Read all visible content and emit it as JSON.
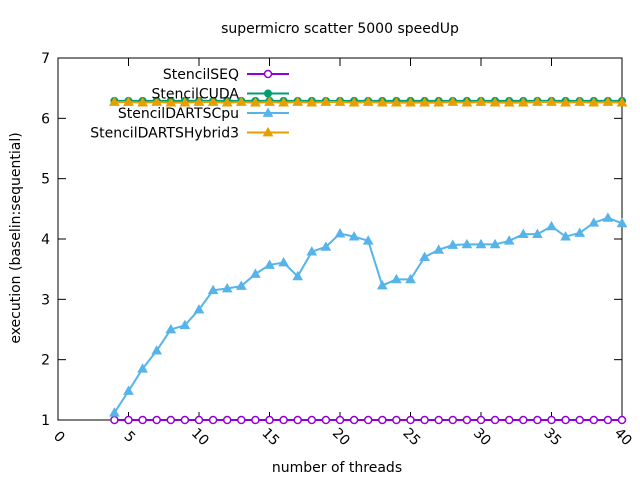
{
  "chart_data": {
    "type": "line",
    "title": "supermicro scatter 5000 speedUp",
    "xlabel": "number of threads",
    "ylabel": "execution (baselin:sequential)",
    "xlim": [
      0,
      40
    ],
    "ylim": [
      1,
      7
    ],
    "xticks": [
      0,
      5,
      10,
      15,
      20,
      25,
      30,
      35,
      40
    ],
    "yticks": [
      1,
      2,
      3,
      4,
      5,
      6,
      7
    ],
    "grid": false,
    "legend_position": "top-left",
    "x": [
      4,
      5,
      6,
      7,
      8,
      9,
      10,
      11,
      12,
      13,
      14,
      15,
      16,
      17,
      18,
      19,
      20,
      21,
      22,
      23,
      24,
      25,
      26,
      27,
      28,
      29,
      30,
      31,
      32,
      33,
      34,
      35,
      36,
      37,
      38,
      39,
      40
    ],
    "series": [
      {
        "name": "StencilSEQ",
        "color": "#9400d3",
        "marker": "open-circle",
        "values": [
          1,
          1,
          1,
          1,
          1,
          1,
          1,
          1,
          1,
          1,
          1,
          1,
          1,
          1,
          1,
          1,
          1,
          1,
          1,
          1,
          1,
          1,
          1,
          1,
          1,
          1,
          1,
          1,
          1,
          1,
          1,
          1,
          1,
          1,
          1,
          1,
          1
        ]
      },
      {
        "name": "StencilCUDA",
        "color": "#009e73",
        "marker": "filled-circle",
        "values": [
          6.29,
          6.29,
          6.29,
          6.29,
          6.29,
          6.29,
          6.29,
          6.29,
          6.29,
          6.29,
          6.29,
          6.29,
          6.29,
          6.29,
          6.29,
          6.29,
          6.29,
          6.29,
          6.29,
          6.29,
          6.29,
          6.29,
          6.29,
          6.29,
          6.29,
          6.29,
          6.29,
          6.29,
          6.29,
          6.29,
          6.29,
          6.29,
          6.29,
          6.29,
          6.29,
          6.29,
          6.29
        ]
      },
      {
        "name": "StencilDARTSCpu",
        "color": "#56b4e9",
        "marker": "filled-triangle",
        "values": [
          1.12,
          1.48,
          1.85,
          2.15,
          2.5,
          2.57,
          2.83,
          3.15,
          3.18,
          3.22,
          3.42,
          3.57,
          3.61,
          3.38,
          3.79,
          3.87,
          4.09,
          4.04,
          3.97,
          3.23,
          3.33,
          3.33,
          3.7,
          3.82,
          3.9,
          3.91,
          3.91,
          3.91,
          3.97,
          4.08,
          4.08,
          4.21,
          4.04,
          4.1,
          4.27,
          4.35,
          4.26
        ]
      },
      {
        "name": "StencilDARTSHybrid3",
        "color": "#e69f00",
        "marker": "filled-triangle",
        "values": [
          6.27,
          6.27,
          6.26,
          6.27,
          6.26,
          6.26,
          6.27,
          6.27,
          6.26,
          6.27,
          6.26,
          6.27,
          6.26,
          6.27,
          6.26,
          6.27,
          6.27,
          6.26,
          6.27,
          6.26,
          6.26,
          6.26,
          6.26,
          6.26,
          6.27,
          6.26,
          6.27,
          6.26,
          6.26,
          6.26,
          6.27,
          6.27,
          6.26,
          6.27,
          6.26,
          6.27,
          6.26
        ]
      }
    ]
  }
}
